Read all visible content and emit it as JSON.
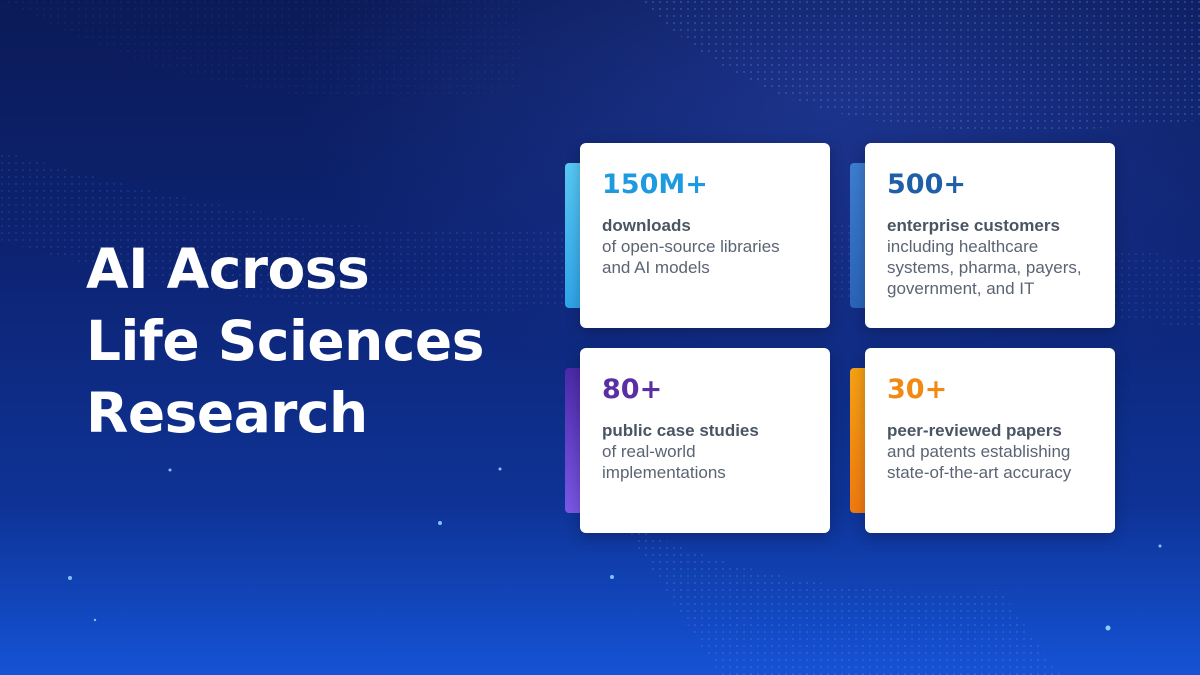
{
  "headline": {
    "line1": "AI Across",
    "line2": "Life Sciences",
    "line3": "Research"
  },
  "stats": [
    {
      "value": "150M+",
      "label": "downloads",
      "desc_lines": [
        "of open-source libraries",
        "and AI models"
      ],
      "value_color": "#1e9be0",
      "accent_top": "#58c8f5",
      "accent_bottom": "#2fa5ea"
    },
    {
      "value": "500+",
      "label": "enterprise customers",
      "desc_lines": [
        "including healthcare",
        "systems, pharma, payers,",
        "government, and IT"
      ],
      "value_color": "#1f5fa8",
      "accent_top": "#3d7dd0",
      "accent_bottom": "#2a64b8"
    },
    {
      "value": "80+",
      "label": "public case studies",
      "desc_lines": [
        "of real-world",
        "implementations"
      ],
      "value_color": "#5a2fa3",
      "accent_top": "#4b2aa8",
      "accent_bottom": "#7b58e8"
    },
    {
      "value": "30+",
      "label": "peer-reviewed papers",
      "desc_lines": [
        "and patents establishing",
        "state-of-the-art accuracy"
      ],
      "value_color": "#f08a12",
      "accent_top": "#f5a114",
      "accent_bottom": "#f07a10"
    }
  ]
}
